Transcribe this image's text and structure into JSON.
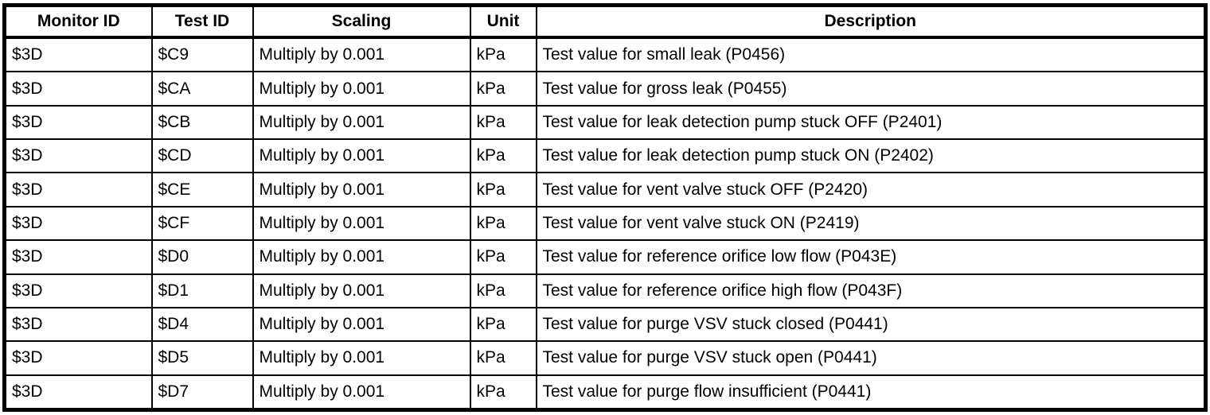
{
  "table": {
    "columns": [
      "Monitor ID",
      "Test ID",
      "Scaling",
      "Unit",
      "Description"
    ],
    "rows": [
      [
        "$3D",
        "$C9",
        "Multiply by 0.001",
        "kPa",
        "Test value for small leak (P0456)"
      ],
      [
        "$3D",
        "$CA",
        "Multiply by 0.001",
        "kPa",
        "Test value for gross leak (P0455)"
      ],
      [
        "$3D",
        "$CB",
        "Multiply by 0.001",
        "kPa",
        "Test value for leak detection pump stuck OFF (P2401)"
      ],
      [
        "$3D",
        "$CD",
        "Multiply by 0.001",
        "kPa",
        "Test value for leak detection pump stuck ON (P2402)"
      ],
      [
        "$3D",
        "$CE",
        "Multiply by 0.001",
        "kPa",
        "Test value for vent valve stuck OFF (P2420)"
      ],
      [
        "$3D",
        "$CF",
        "Multiply by 0.001",
        "kPa",
        "Test value for vent valve stuck ON (P2419)"
      ],
      [
        "$3D",
        "$D0",
        "Multiply by 0.001",
        "kPa",
        "Test value for reference orifice low flow (P043E)"
      ],
      [
        "$3D",
        "$D1",
        "Multiply by 0.001",
        "kPa",
        "Test value for reference orifice high flow (P043F)"
      ],
      [
        "$3D",
        "$D4",
        "Multiply by 0.001",
        "kPa",
        "Test value for purge VSV stuck closed (P0441)"
      ],
      [
        "$3D",
        "$D5",
        "Multiply by 0.001",
        "kPa",
        "Test value for purge VSV stuck open (P0441)"
      ],
      [
        "$3D",
        "$D7",
        "Multiply by 0.001",
        "kPa",
        "Test value for purge flow insufficient (P0441)"
      ]
    ],
    "colors": {
      "border": "#000000",
      "background": "#ffffff",
      "text": "#000000"
    }
  }
}
